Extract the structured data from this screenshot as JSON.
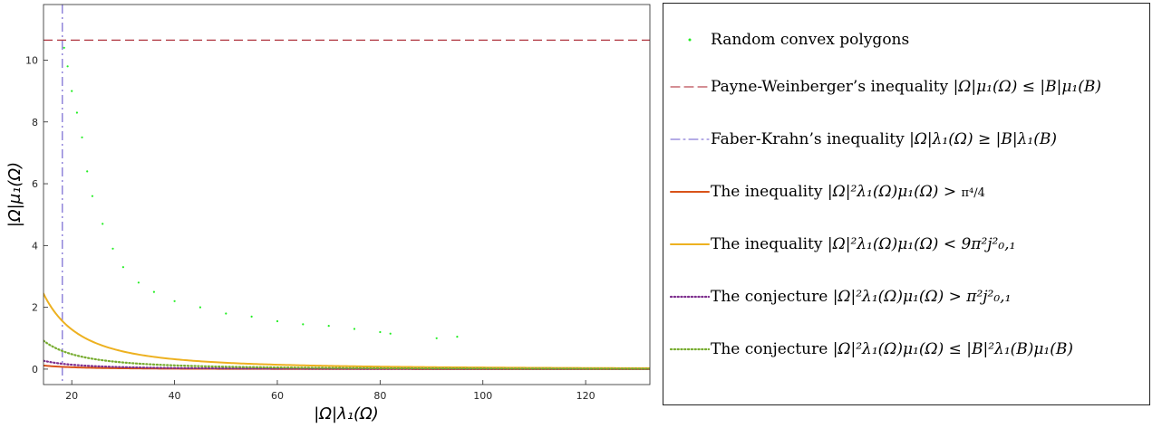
{
  "chart_data": {
    "type": "scatter",
    "xlabel": "|Ω|λ₁(Ω)",
    "ylabel": "|Ω|μ₁(Ω)",
    "xlim": [
      14.5,
      132.5
    ],
    "ylim": [
      -0.5,
      11.8
    ],
    "x_ticks": [
      20,
      40,
      60,
      80,
      100,
      120
    ],
    "y_ticks": [
      0,
      2,
      4,
      6,
      8,
      10
    ],
    "grid": false,
    "legend_position": "right, outside plot area",
    "constants": {
      "ball_mu_area": 10.65,
      "ball_lambda_area": 18.17,
      "pi4_over_4": 24.35,
      "upper_constant": 513.7,
      "pi2_j01_squared": 57.08,
      "ball_product": 193.5
    },
    "series": [
      {
        "name": "Random convex polygons",
        "kind": "scatter",
        "color": "#22ee22",
        "sample_points": [
          [
            18.5,
            10.4
          ],
          [
            19.2,
            9.8
          ],
          [
            20,
            9.0
          ],
          [
            21,
            8.3
          ],
          [
            22,
            7.5
          ],
          [
            23,
            6.4
          ],
          [
            24,
            5.6
          ],
          [
            26,
            4.7
          ],
          [
            28,
            3.9
          ],
          [
            30,
            3.3
          ],
          [
            33,
            2.8
          ],
          [
            36,
            2.5
          ],
          [
            40,
            2.2
          ],
          [
            45,
            2.0
          ],
          [
            50,
            1.8
          ],
          [
            55,
            1.7
          ],
          [
            60,
            1.55
          ],
          [
            65,
            1.45
          ],
          [
            70,
            1.4
          ],
          [
            75,
            1.3
          ],
          [
            80,
            1.2
          ],
          [
            82,
            1.15
          ],
          [
            91,
            1.0
          ],
          [
            95,
            1.05
          ]
        ]
      },
      {
        "name": "Payne-Weinberger's inequality |Ω|μ₁(Ω) ≤ |B|μ₁(B)",
        "kind": "hline",
        "color": "#a81e2a",
        "value": 10.65
      },
      {
        "name": "Faber-Krahn's inequality |Ω|λ₁(Ω) ≥ |B|λ₁(B)",
        "kind": "vline",
        "color": "#6a5acd",
        "value": 18.17
      },
      {
        "name": "The inequality |Ω|²λ₁(Ω)μ₁(Ω) > π⁴/4",
        "kind": "curve",
        "color": "#d95319",
        "constant": 24.35
      },
      {
        "name": "The inequality |Ω|²λ₁(Ω)μ₁(Ω) < 9π²j²₀,₁",
        "kind": "curve",
        "color": "#edb120",
        "constant": 513.7
      },
      {
        "name": "The conjecture |Ω|²λ₁(Ω)μ₁(Ω) > π²j²₀,₁",
        "kind": "curve",
        "color": "#7e2f8e",
        "constant": 57.08
      },
      {
        "name": "The conjecture |Ω|²λ₁(Ω)μ₁(Ω) ≤ |B|²λ₁(B)μ₁(B)",
        "kind": "curve",
        "color": "#77ac30",
        "constant": 193.5
      }
    ]
  },
  "legend": {
    "items": [
      {
        "pre": "Random convex polygons",
        "math": "",
        "post": ""
      },
      {
        "pre": "Payne-Weinberger’s inequality ",
        "math": "|Ω|μ₁(Ω) ≤ |B|μ₁(B)",
        "post": ""
      },
      {
        "pre": "Faber-Krahn’s inequality ",
        "math": "|Ω|λ₁(Ω) ≥ |B|λ₁(B)",
        "post": ""
      },
      {
        "pre": "The inequality ",
        "math": "|Ω|²λ₁(Ω)μ₁(Ω) > ",
        "post": "π⁴/4"
      },
      {
        "pre": "The inequality ",
        "math": "|Ω|²λ₁(Ω)μ₁(Ω) < 9π²j²₀,₁",
        "post": ""
      },
      {
        "pre": "The conjecture ",
        "math": "|Ω|²λ₁(Ω)μ₁(Ω) > π²j²₀,₁",
        "post": ""
      },
      {
        "pre": "The conjecture ",
        "math": "|Ω|²λ₁(Ω)μ₁(Ω) ≤ |B|²λ₁(B)μ₁(B)",
        "post": ""
      }
    ]
  }
}
